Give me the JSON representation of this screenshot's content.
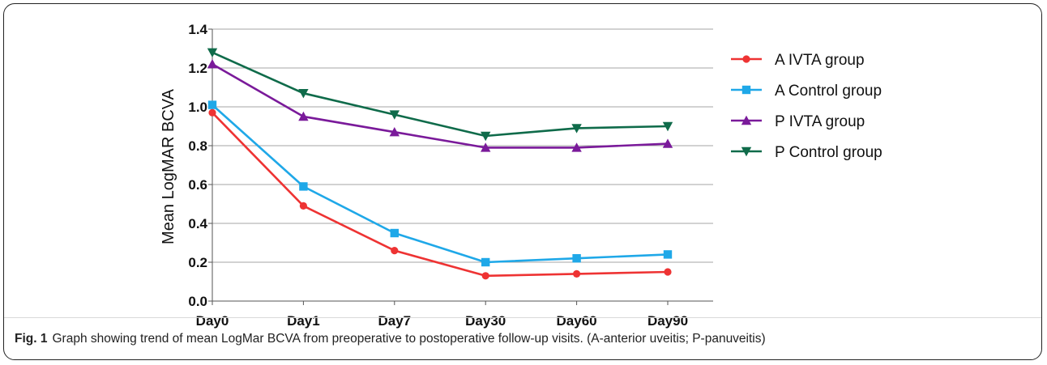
{
  "chart_data": {
    "type": "line",
    "categories": [
      "Day0",
      "Day1",
      "Day7",
      "Day30",
      "Day60",
      "Day90"
    ],
    "ylabel": "Mean LogMAR BCVA",
    "ylim": [
      0,
      1.4
    ],
    "yticks": [
      "0.0",
      "0.2",
      "0.4",
      "0.6",
      "0.8",
      "1.0",
      "1.2",
      "1.4"
    ],
    "grid": true,
    "legend_position": "right",
    "series": [
      {
        "name": "A IVTA group",
        "color": "#ee3333",
        "marker": "circle",
        "values": [
          0.97,
          0.49,
          0.26,
          0.13,
          0.14,
          0.15
        ]
      },
      {
        "name": "A Control group",
        "color": "#1fa8e8",
        "marker": "square",
        "values": [
          1.01,
          0.59,
          0.35,
          0.2,
          0.22,
          0.24
        ]
      },
      {
        "name": "P IVTA group",
        "color": "#7a1a9a",
        "marker": "triangle-up",
        "values": [
          1.22,
          0.95,
          0.87,
          0.79,
          0.79,
          0.81
        ]
      },
      {
        "name": "P Control group",
        "color": "#0f6b4a",
        "marker": "triangle-down",
        "values": [
          1.28,
          1.07,
          0.96,
          0.85,
          0.89,
          0.9
        ]
      }
    ]
  },
  "caption": {
    "label": "Fig. 1",
    "text": "Graph showing trend of mean LogMar BCVA from preoperative to postoperative follow-up visits. (A-anterior uveitis; P-panuveitis)"
  }
}
